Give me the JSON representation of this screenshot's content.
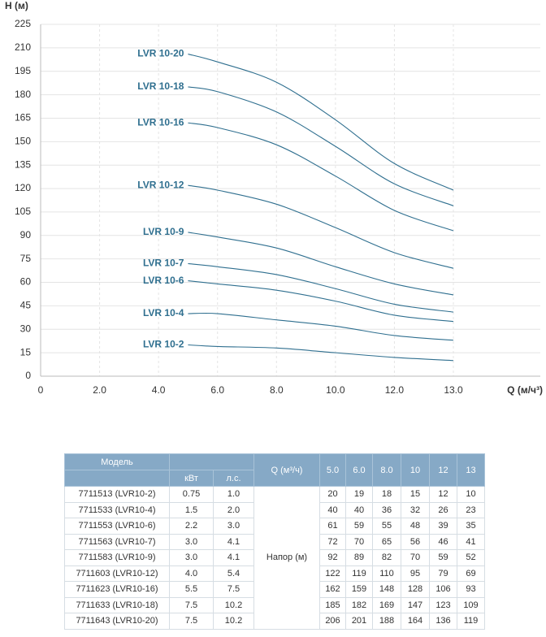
{
  "chart_data": {
    "type": "line",
    "y_label": "H (м)",
    "x_label": "Q (м/ч³)",
    "xlim": [
      0,
      13
    ],
    "ylim": [
      0,
      225
    ],
    "xticks": [
      0,
      {
        "value": 2,
        "label": "2.0"
      },
      {
        "value": 4,
        "label": "4.0"
      },
      {
        "value": 6,
        "label": "6.0"
      },
      {
        "value": 8,
        "label": "8.0"
      },
      {
        "value": 10,
        "label": "10.0"
      },
      {
        "value": 12,
        "label": "12.0"
      },
      {
        "value": 13,
        "label": "13.0"
      }
    ],
    "yticks": [
      0,
      15,
      30,
      45,
      60,
      75,
      90,
      105,
      120,
      135,
      150,
      165,
      180,
      195,
      210,
      225
    ],
    "grid": true,
    "color": "#2f6f8f",
    "x": [
      5,
      6,
      8,
      10,
      12,
      13
    ],
    "series": [
      {
        "name": "LVR 10-2",
        "values": [
          20,
          19,
          18,
          15,
          12,
          10
        ]
      },
      {
        "name": "LVR 10-4",
        "values": [
          40,
          40,
          36,
          32,
          26,
          23
        ]
      },
      {
        "name": "LVR 10-6",
        "values": [
          61,
          59,
          55,
          48,
          39,
          35
        ]
      },
      {
        "name": "LVR 10-7",
        "values": [
          72,
          70,
          65,
          56,
          46,
          41
        ]
      },
      {
        "name": "LVR 10-9",
        "values": [
          92,
          89,
          82,
          70,
          59,
          52
        ]
      },
      {
        "name": "LVR 10-12",
        "values": [
          122,
          119,
          110,
          95,
          79,
          69
        ]
      },
      {
        "name": "LVR 10-16",
        "values": [
          162,
          159,
          148,
          128,
          106,
          93
        ]
      },
      {
        "name": "LVR 10-18",
        "values": [
          185,
          182,
          169,
          147,
          123,
          109
        ]
      },
      {
        "name": "LVR 10-20",
        "values": [
          206,
          201,
          188,
          164,
          136,
          119
        ]
      }
    ]
  },
  "table": {
    "header": {
      "model": "Модель",
      "kw": "кВт",
      "hp": "л.с.",
      "q": "Q (м³/ч)",
      "head": "Напор (м)",
      "flows": [
        "5.0",
        "6.0",
        "8.0",
        "10",
        "12",
        "13"
      ]
    },
    "rows": [
      [
        "7711513 (LVR10-2)",
        "0.75",
        "1.0",
        "20",
        "19",
        "18",
        "15",
        "12",
        "10"
      ],
      [
        "7711533 (LVR10-4)",
        "1.5",
        "2.0",
        "40",
        "40",
        "36",
        "32",
        "26",
        "23"
      ],
      [
        "7711553 (LVR10-6)",
        "2.2",
        "3.0",
        "61",
        "59",
        "55",
        "48",
        "39",
        "35"
      ],
      [
        "7711563 (LVR10-7)",
        "3.0",
        "4.1",
        "72",
        "70",
        "65",
        "56",
        "46",
        "41"
      ],
      [
        "7711583 (LVR10-9)",
        "3.0",
        "4.1",
        "92",
        "89",
        "82",
        "70",
        "59",
        "52"
      ],
      [
        "7711603 (LVR10-12)",
        "4.0",
        "5.4",
        "122",
        "119",
        "110",
        "95",
        "79",
        "69"
      ],
      [
        "7711623 (LVR10-16)",
        "5.5",
        "7.5",
        "162",
        "159",
        "148",
        "128",
        "106",
        "93"
      ],
      [
        "7711633 (LVR10-18)",
        "7.5",
        "10.2",
        "185",
        "182",
        "169",
        "147",
        "123",
        "109"
      ],
      [
        "7711643 (LVR10-20)",
        "7.5",
        "10.2",
        "206",
        "201",
        "188",
        "164",
        "136",
        "119"
      ]
    ]
  }
}
